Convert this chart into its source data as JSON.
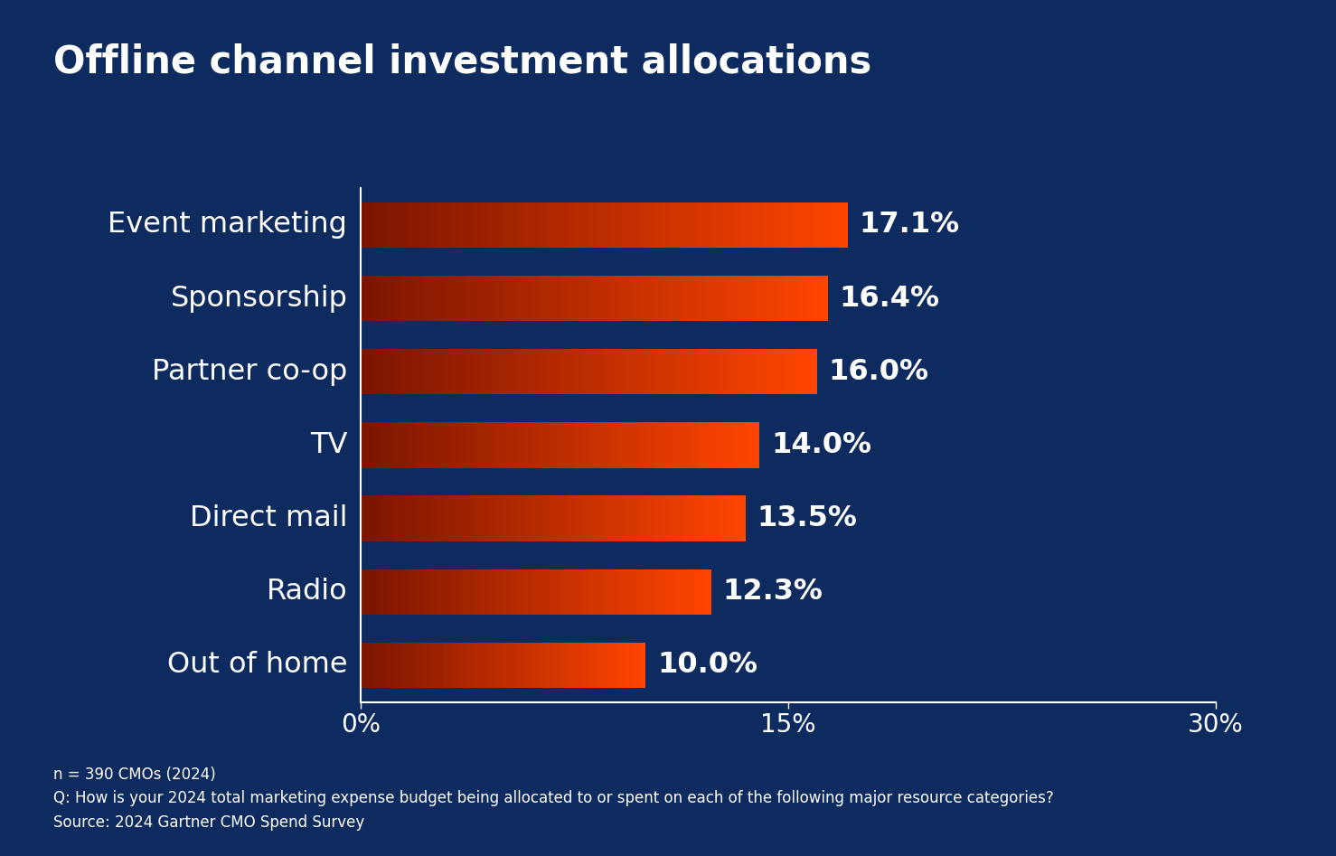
{
  "title": "Offline channel investment allocations",
  "categories": [
    "Event marketing",
    "Sponsorship",
    "Partner co-op",
    "TV",
    "Direct mail",
    "Radio",
    "Out of home"
  ],
  "values": [
    17.1,
    16.4,
    16.0,
    14.0,
    13.5,
    12.3,
    10.0
  ],
  "value_labels": [
    "17.1%",
    "16.4%",
    "16.0%",
    "14.0%",
    "13.5%",
    "12.3%",
    "10.0%"
  ],
  "bar_color_left": "#7A1500",
  "bar_color_right": "#FF4500",
  "background_color": "#0D2B5E",
  "text_color": "#FFFFFF",
  "xlim": [
    0,
    30
  ],
  "xticks": [
    0,
    15,
    30
  ],
  "xtick_labels": [
    "0%",
    "15%",
    "30%"
  ],
  "title_fontsize": 30,
  "label_fontsize": 23,
  "value_fontsize": 23,
  "tick_fontsize": 20,
  "footnote_fontsize": 12,
  "bar_height": 0.62,
  "footnote_lines": [
    "n = 390 CMOs (2024)",
    "Q: How is your 2024 total marketing expense budget being allocated to or spent on each of the following major resource categories?",
    "Source: 2024 Gartner CMO Spend Survey"
  ]
}
